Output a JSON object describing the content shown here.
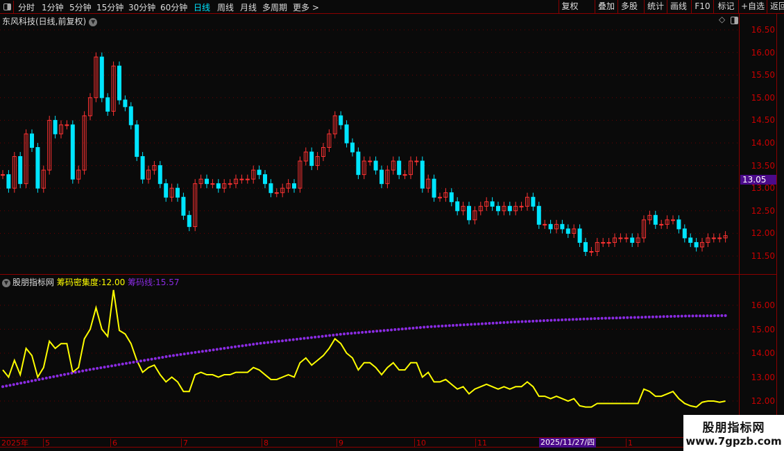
{
  "toolbar": {
    "tabs": [
      "分时",
      "1分钟",
      "5分钟",
      "15分钟",
      "30分钟",
      "60分钟",
      "日线",
      "周线",
      "月线",
      "多周期",
      "更多 >"
    ],
    "active_tab": "日线",
    "right_buttons": [
      "复权",
      "叠加",
      "多股",
      "统计",
      "画线",
      "F10",
      "标记",
      "+自选",
      "返回"
    ]
  },
  "main": {
    "title": "东风科技(日线,前复权)",
    "price_ticks": [
      "16.50",
      "16.00",
      "15.50",
      "15.00",
      "14.50",
      "14.00",
      "13.50",
      "13.00",
      "12.50",
      "12.00",
      "11.50"
    ],
    "current_price": "13.05"
  },
  "indicator": {
    "name": "股朋指标网",
    "density_label": "筹码密集度:",
    "density_value": "12.00",
    "chip_label": "筹码线:",
    "chip_value": "15.57",
    "ticks": [
      "16.00",
      "15.00",
      "14.00",
      "13.00",
      "12.00"
    ]
  },
  "date_axis": {
    "labels": [
      "2025年",
      "5",
      "6",
      "7",
      "8",
      "9",
      "10",
      "11",
      "1"
    ],
    "cursor_date": "2025/11/27/四"
  },
  "watermark": {
    "title": "股朋指标网",
    "url": "www.7gpzb.com"
  },
  "colors": {
    "up": "#ff3232",
    "down": "#00e5ff",
    "density": "#ffff00",
    "chip": "#8a2be2",
    "grid": "#6b0000"
  },
  "chart_data": {
    "type": "candlestick",
    "ylim": [
      11.3,
      16.7
    ],
    "closes": [
      13.3,
      13.0,
      13.7,
      13.1,
      14.2,
      13.9,
      13.0,
      13.4,
      14.5,
      14.2,
      14.4,
      14.4,
      13.2,
      13.4,
      14.6,
      15.0,
      15.9,
      15.0,
      14.7,
      15.7,
      14.95,
      14.8,
      14.4,
      13.7,
      13.2,
      13.4,
      13.5,
      13.1,
      12.8,
      13.0,
      12.8,
      12.4,
      12.15,
      13.1,
      13.2,
      13.1,
      13.1,
      13.0,
      13.1,
      13.1,
      13.2,
      13.2,
      13.2,
      13.4,
      13.3,
      13.1,
      12.9,
      12.9,
      13.0,
      13.1,
      13.0,
      13.6,
      13.8,
      13.5,
      13.7,
      13.9,
      14.2,
      14.6,
      14.4,
      14.0,
      13.8,
      13.3,
      13.6,
      13.6,
      13.4,
      13.1,
      13.4,
      13.6,
      13.3,
      13.3,
      13.6,
      13.6,
      13.0,
      13.2,
      12.8,
      12.8,
      12.9,
      12.7,
      12.5,
      12.6,
      12.3,
      12.5,
      12.6,
      12.7,
      12.6,
      12.5,
      12.6,
      12.5,
      12.6,
      12.6,
      12.8,
      12.6,
      12.2,
      12.2,
      12.1,
      12.2,
      12.1,
      12.0,
      12.1,
      11.8,
      11.6,
      11.6,
      11.8,
      11.8,
      11.8,
      11.9,
      11.9,
      11.9,
      11.8,
      11.9,
      12.3,
      12.4,
      12.2,
      12.2,
      12.3,
      12.3,
      12.1,
      11.9,
      11.8,
      11.7,
      11.8,
      11.9,
      11.9,
      11.9,
      11.95
    ],
    "indicator_ylim": [
      11.0,
      17.3
    ],
    "series": [
      {
        "name": "筹码密集度",
        "values": [
          13.3,
          13.0,
          13.7,
          13.1,
          14.2,
          13.9,
          13.0,
          13.4,
          14.5,
          14.2,
          14.4,
          14.4,
          13.2,
          13.4,
          14.6,
          15.0,
          15.9,
          15.0,
          14.7,
          16.64,
          14.95,
          14.8,
          14.4,
          13.7,
          13.2,
          13.4,
          13.5,
          13.1,
          12.8,
          13.0,
          12.8,
          12.4,
          12.4,
          13.1,
          13.2,
          13.1,
          13.1,
          13.0,
          13.1,
          13.1,
          13.2,
          13.2,
          13.2,
          13.4,
          13.3,
          13.1,
          12.9,
          12.9,
          13.0,
          13.1,
          13.0,
          13.6,
          13.8,
          13.5,
          13.7,
          13.9,
          14.2,
          14.6,
          14.4,
          14.0,
          13.8,
          13.3,
          13.6,
          13.6,
          13.4,
          13.1,
          13.4,
          13.6,
          13.3,
          13.3,
          13.6,
          13.6,
          13.0,
          13.2,
          12.8,
          12.8,
          12.9,
          12.7,
          12.5,
          12.6,
          12.3,
          12.5,
          12.6,
          12.7,
          12.6,
          12.5,
          12.6,
          12.5,
          12.6,
          12.6,
          12.8,
          12.6,
          12.2,
          12.2,
          12.1,
          12.2,
          12.1,
          12.0,
          12.1,
          11.8,
          11.75,
          11.75,
          11.9,
          11.9,
          11.9,
          11.9,
          11.9,
          11.9,
          11.9,
          11.9,
          12.5,
          12.4,
          12.2,
          12.2,
          12.3,
          12.4,
          12.1,
          11.9,
          11.8,
          11.75,
          11.95,
          12.0,
          12.0,
          11.95,
          12.0
        ]
      },
      {
        "name": "筹码线",
        "values": [
          12.6,
          12.95,
          13.3,
          13.6,
          13.9,
          14.15,
          14.4,
          14.6,
          14.8,
          14.95,
          15.1,
          15.2,
          15.3,
          15.38,
          15.45,
          15.5,
          15.55,
          15.57
        ]
      }
    ]
  }
}
